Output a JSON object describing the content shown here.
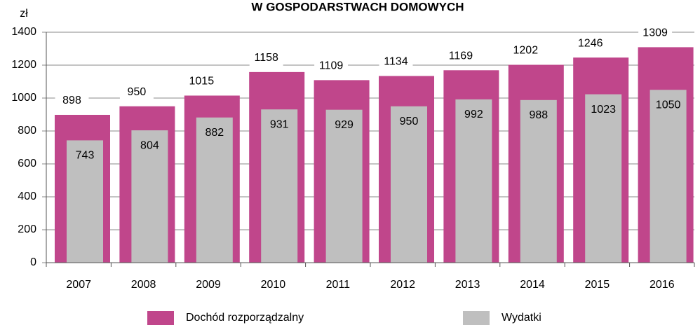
{
  "chart_data": {
    "type": "bar",
    "title": "W GOSPODARSTWACH DOMOWYCH",
    "y_label": "zł",
    "categories": [
      "2007",
      "2008",
      "2009",
      "2010",
      "2011",
      "2012",
      "2013",
      "2014",
      "2015",
      "2016"
    ],
    "series": [
      {
        "name": "Dochód rozporządzalny",
        "color": "#c0468b",
        "values": [
          898,
          950,
          1015,
          1158,
          1109,
          1134,
          1169,
          1202,
          1246,
          1309
        ]
      },
      {
        "name": "Wydatki",
        "color": "#bfbfbf",
        "values": [
          743,
          804,
          882,
          931,
          929,
          950,
          992,
          988,
          1023,
          1050
        ]
      }
    ],
    "ylim": [
      0,
      1400
    ],
    "yticks": [
      0,
      200,
      400,
      600,
      800,
      1000,
      1200,
      1400
    ],
    "grid": true,
    "legend": "bottom"
  }
}
